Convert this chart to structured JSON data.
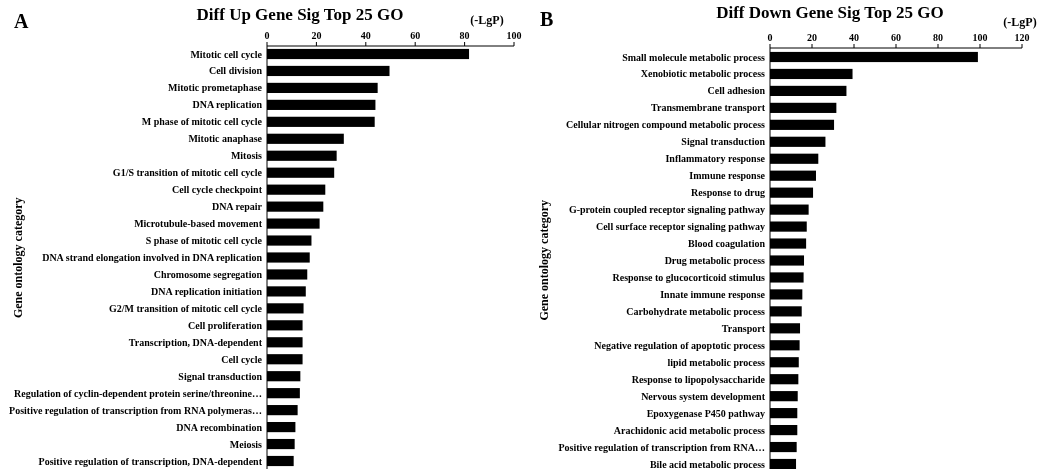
{
  "chart_data": [
    {
      "type": "bar",
      "orientation": "horizontal",
      "title": "Diff Up Gene Sig Top 25 GO",
      "xlabel": "(-LgP)",
      "ylabel": "Gene ontology category",
      "annotations": [
        "A"
      ],
      "color": "#000000",
      "xlim": [
        0,
        100
      ],
      "xticks": [
        0,
        20,
        40,
        60,
        80,
        100
      ],
      "categories": [
        "Mitotic cell cycle",
        "Cell division",
        "Mitotic prometaphase",
        "DNA replication",
        "M phase of mitotic cell cycle",
        "Mitotic anaphase",
        "Mitosis",
        "G1/S transition of mitotic cell cycle",
        "Cell cycle checkpoint",
        "DNA repair",
        "Microtubule-based movement",
        "S phase of mitotic cell cycle",
        "DNA strand elongation involved in DNA replication",
        "Chromosome segregation",
        "DNA replication initiation",
        "G2/M transition of mitotic cell cycle",
        "Cell proliferation",
        "Transcription, DNA-dependent",
        "Cell cycle",
        "Signal transduction",
        "Regulation of cyclin-dependent protein serine/threonine…",
        "Positive regulation of transcription from RNA polymeras…",
        "DNA recombination",
        "Meiosis",
        "Positive regulation of transcription, DNA-dependent"
      ],
      "values": [
        81.8,
        49.6,
        44.8,
        43.9,
        43.6,
        31.1,
        28.2,
        27.2,
        23.6,
        22.8,
        21.3,
        18.0,
        17.3,
        16.3,
        15.7,
        14.8,
        14.4,
        14.4,
        14.4,
        13.5,
        13.3,
        12.4,
        11.5,
        11.2,
        10.8
      ]
    },
    {
      "type": "bar",
      "orientation": "horizontal",
      "title": "Diff Down Gene Sig Top 25 GO",
      "xlabel": "(-LgP)",
      "ylabel": "Gene ontology category",
      "annotations": [
        "B"
      ],
      "color": "#000000",
      "xlim": [
        0,
        120
      ],
      "xticks": [
        0,
        20,
        40,
        60,
        80,
        100,
        120
      ],
      "categories": [
        "Small molecule metabolic process",
        "Xenobiotic metabolic process",
        "Cell adhesion",
        "Transmembrane transport",
        "Cellular nitrogen compound metabolic process",
        "Signal transduction",
        "Inflammatory response",
        "Immune response",
        "Response to drug",
        "G-protein coupled receptor signaling pathway",
        "Cell surface receptor signaling pathway",
        "Blood coagulation",
        "Drug metabolic process",
        "Response to glucocorticoid stimulus",
        "Innate immune response",
        "Carbohydrate metabolic process",
        "Transport",
        "Negative regulation of apoptotic process",
        "lipid metabolic process",
        "Response to lipopolysaccharide",
        "Nervous system development",
        "Epoxygenase P450 pathway",
        "Arachidonic acid metabolic process",
        "Positive regulation of transcription from RNA…",
        "Bile acid metabolic process"
      ],
      "values": [
        99.0,
        39.3,
        36.4,
        31.6,
        30.5,
        26.4,
        23.0,
        21.9,
        20.5,
        18.4,
        17.5,
        17.2,
        16.2,
        16.0,
        15.4,
        15.1,
        14.3,
        14.1,
        13.7,
        13.5,
        13.2,
        13.0,
        13.0,
        12.7,
        12.4
      ]
    }
  ]
}
